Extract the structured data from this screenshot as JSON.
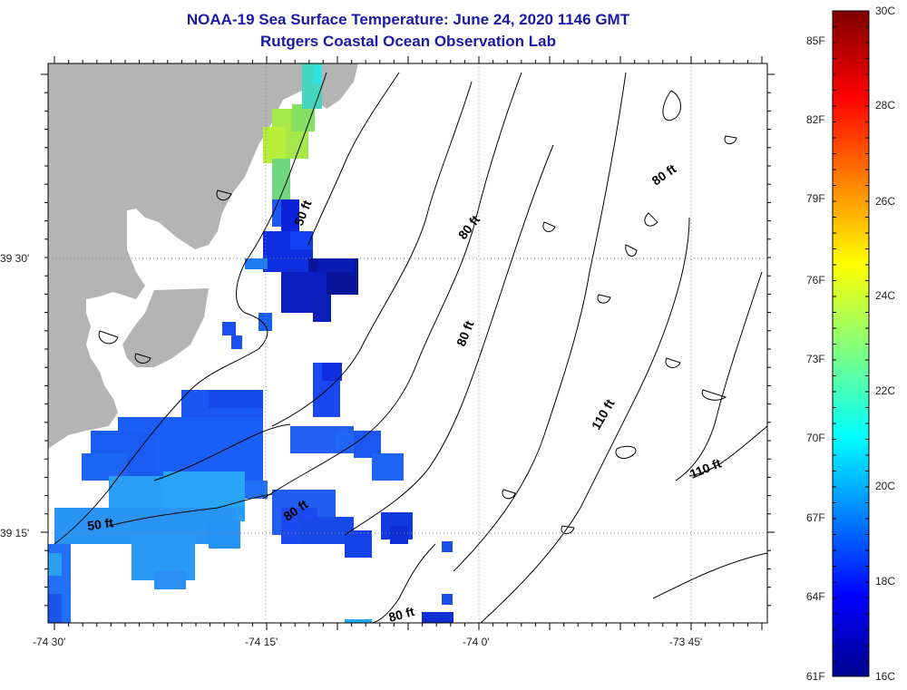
{
  "title": {
    "line1": "NOAA-19 Sea Surface Temperature:  June 24, 2020 1146 GMT",
    "line2": "Rutgers Coastal Ocean Observation Lab"
  },
  "axes": {
    "lon_labels": [
      "-74 30'",
      "-74 15'",
      "-74 0'",
      "-73 45'"
    ],
    "lat_labels": [
      "39 30'",
      "39 15'"
    ]
  },
  "contours": {
    "labels": [
      "50 ft",
      "80 ft",
      "80 ft",
      "80 ft",
      "110 ft",
      "110 ft",
      "50 ft",
      "80 ft",
      "80 ft"
    ]
  },
  "colorbar": {
    "f_labels": [
      "85F",
      "82F",
      "79F",
      "76F",
      "73F",
      "70F",
      "67F",
      "64F",
      "61F"
    ],
    "c_labels": [
      "30C",
      "28C",
      "26C",
      "24C",
      "22C",
      "20C",
      "18C",
      "16C"
    ]
  },
  "colors": {
    "title": "#1a1aa6",
    "land": "#b4b4b4",
    "grid": "#888888"
  }
}
